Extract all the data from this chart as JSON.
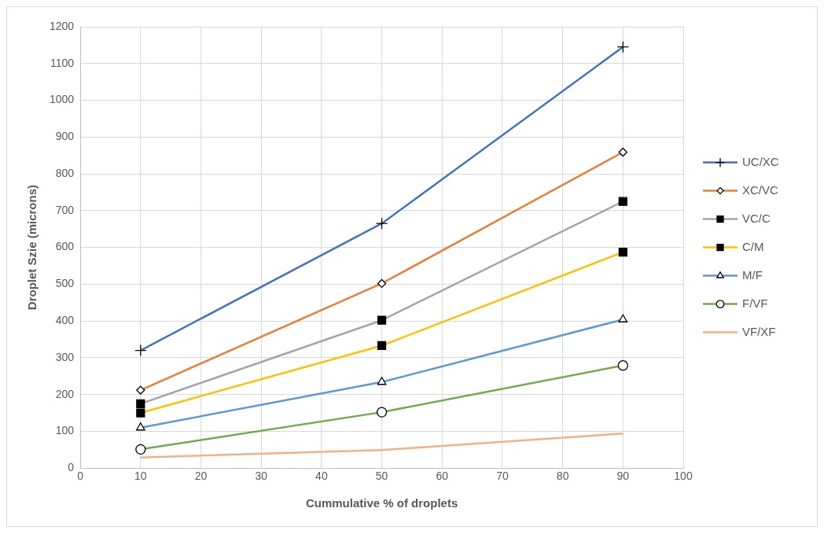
{
  "chart_data": {
    "type": "line",
    "xlabel": "Cummulative % of droplets",
    "ylabel": "Droplet Szie (microns)",
    "x": [
      10,
      50,
      90
    ],
    "xlim": [
      0,
      100
    ],
    "xticks": [
      0,
      10,
      20,
      30,
      40,
      50,
      60,
      70,
      80,
      90,
      100
    ],
    "ylim": [
      0,
      1200
    ],
    "yticks": [
      0,
      100,
      200,
      300,
      400,
      500,
      600,
      700,
      800,
      900,
      1000,
      1100,
      1200
    ],
    "grid": true,
    "legend": "right",
    "series": [
      {
        "name": "UC/XC",
        "color": "#4472c4",
        "marker": "cross",
        "values": [
          320,
          665,
          1145
        ]
      },
      {
        "name": "XC/VC",
        "color": "#ed7d31",
        "marker": "diamond",
        "values": [
          212,
          502,
          859
        ]
      },
      {
        "name": "VC/C",
        "color": "#a5a5a5",
        "marker": "square",
        "values": [
          175,
          402,
          725
        ]
      },
      {
        "name": "C/M",
        "color": "#ffc000",
        "marker": "square",
        "values": [
          150,
          333,
          587
        ]
      },
      {
        "name": "M/F",
        "color": "#5b9bd5",
        "marker": "triangle",
        "values": [
          110,
          234,
          404
        ]
      },
      {
        "name": "F/VF",
        "color": "#70ad47",
        "marker": "circle",
        "values": [
          51,
          152,
          279
        ]
      },
      {
        "name": "VF/XF",
        "color": "#f4b183",
        "marker": "none",
        "values": [
          29,
          49,
          94
        ]
      }
    ]
  }
}
